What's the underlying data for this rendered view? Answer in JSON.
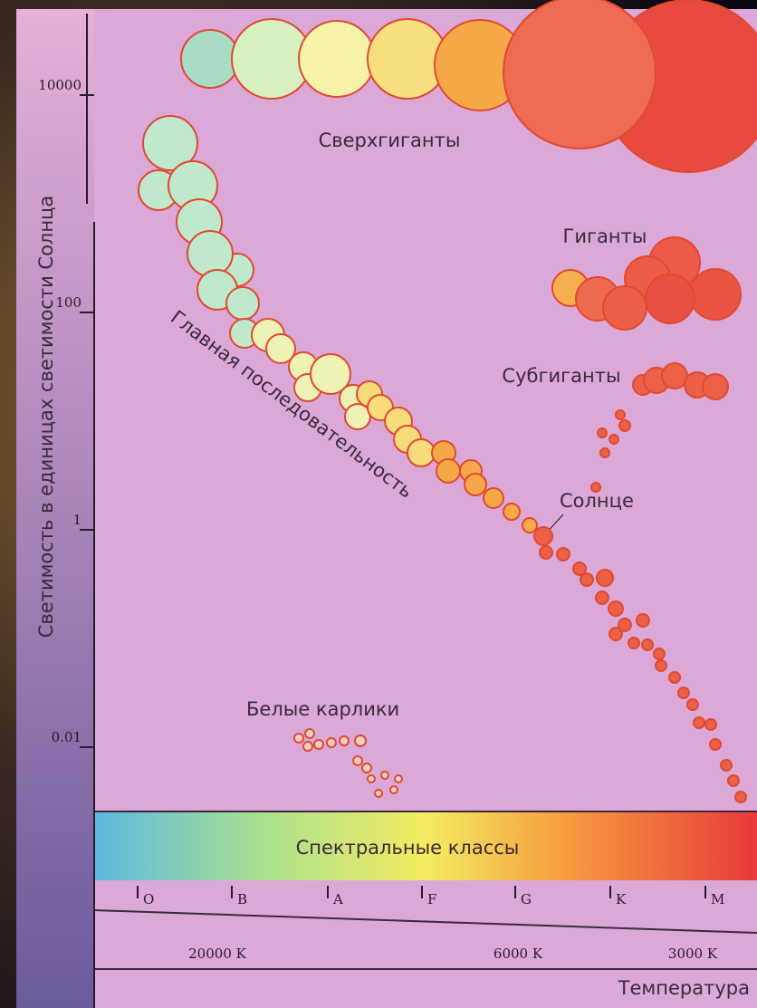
{
  "axis": {
    "title": "Светимость в единицах светимости Солнца",
    "ticks": [
      "10000",
      "100",
      "1",
      "0.01"
    ]
  },
  "regions": {
    "supergiants": "Сверхгиганты",
    "giants": "Гиганты",
    "subgiants": "Субгиганты",
    "main_sequence": "Главная последовательность",
    "sun": "Солнце",
    "white_dwarfs": "Белые карлики"
  },
  "spectrum": {
    "title": "Спектральные классы",
    "classes": [
      "O",
      "B",
      "A",
      "F",
      "G",
      "K",
      "M"
    ]
  },
  "temperature": {
    "title": "Температура",
    "ticks": [
      "20000 K",
      "6000 K",
      "3000 K"
    ]
  }
}
